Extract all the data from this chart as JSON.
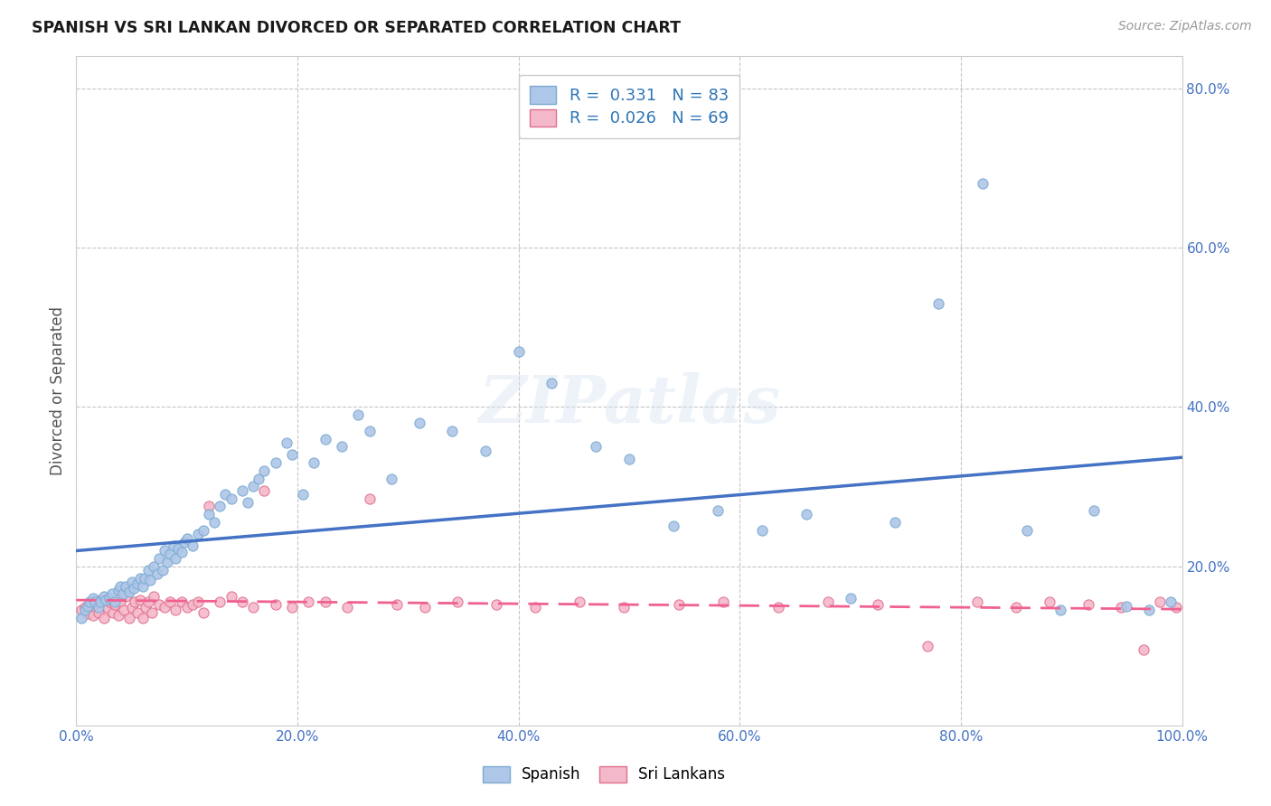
{
  "title": "SPANISH VS SRI LANKAN DIVORCED OR SEPARATED CORRELATION CHART",
  "source_text": "Source: ZipAtlas.com",
  "ylabel": "Divorced or Separated",
  "spanish_R": 0.331,
  "spanish_N": 83,
  "srilanka_R": 0.026,
  "srilanka_N": 69,
  "spanish_color": "#aec6e8",
  "srilanka_color": "#f4b8cb",
  "spanish_line_color": "#4472c4",
  "srilanka_line_color": "#f06090",
  "legend_R_color": "#2e75b6",
  "background_color": "#ffffff",
  "grid_color": "#b8b8b8",
  "watermark": "ZIPatlas",
  "xmin": 0.0,
  "xmax": 1.0,
  "ymin": 0.0,
  "ymax": 0.84,
  "spanish_x": [
    0.005,
    0.008,
    0.01,
    0.012,
    0.015,
    0.017,
    0.02,
    0.022,
    0.025,
    0.027,
    0.03,
    0.032,
    0.035,
    0.038,
    0.04,
    0.042,
    0.045,
    0.048,
    0.05,
    0.052,
    0.055,
    0.058,
    0.06,
    0.062,
    0.065,
    0.067,
    0.07,
    0.073,
    0.075,
    0.078,
    0.08,
    0.082,
    0.085,
    0.088,
    0.09,
    0.092,
    0.095,
    0.098,
    0.1,
    0.105,
    0.11,
    0.115,
    0.12,
    0.125,
    0.13,
    0.135,
    0.14,
    0.15,
    0.155,
    0.16,
    0.165,
    0.17,
    0.18,
    0.19,
    0.195,
    0.205,
    0.215,
    0.225,
    0.24,
    0.255,
    0.265,
    0.285,
    0.31,
    0.34,
    0.37,
    0.4,
    0.43,
    0.47,
    0.5,
    0.54,
    0.58,
    0.62,
    0.66,
    0.7,
    0.74,
    0.78,
    0.82,
    0.86,
    0.89,
    0.92,
    0.95,
    0.97,
    0.99
  ],
  "spanish_y": [
    0.135,
    0.145,
    0.15,
    0.155,
    0.16,
    0.155,
    0.148,
    0.155,
    0.162,
    0.158,
    0.16,
    0.165,
    0.155,
    0.17,
    0.175,
    0.165,
    0.175,
    0.168,
    0.18,
    0.172,
    0.178,
    0.185,
    0.175,
    0.185,
    0.195,
    0.182,
    0.2,
    0.19,
    0.21,
    0.195,
    0.22,
    0.205,
    0.215,
    0.225,
    0.21,
    0.222,
    0.218,
    0.23,
    0.235,
    0.225,
    0.24,
    0.245,
    0.265,
    0.255,
    0.275,
    0.29,
    0.285,
    0.295,
    0.28,
    0.3,
    0.31,
    0.32,
    0.33,
    0.355,
    0.34,
    0.29,
    0.33,
    0.36,
    0.35,
    0.39,
    0.37,
    0.31,
    0.38,
    0.37,
    0.345,
    0.47,
    0.43,
    0.35,
    0.335,
    0.25,
    0.27,
    0.245,
    0.265,
    0.16,
    0.255,
    0.53,
    0.68,
    0.245,
    0.145,
    0.27,
    0.15,
    0.145,
    0.155
  ],
  "srilanka_x": [
    0.005,
    0.008,
    0.01,
    0.013,
    0.015,
    0.018,
    0.02,
    0.022,
    0.025,
    0.028,
    0.03,
    0.033,
    0.035,
    0.038,
    0.04,
    0.043,
    0.045,
    0.048,
    0.05,
    0.053,
    0.055,
    0.058,
    0.06,
    0.063,
    0.065,
    0.068,
    0.07,
    0.075,
    0.08,
    0.085,
    0.09,
    0.095,
    0.1,
    0.105,
    0.11,
    0.115,
    0.12,
    0.13,
    0.14,
    0.15,
    0.16,
    0.17,
    0.18,
    0.195,
    0.21,
    0.225,
    0.245,
    0.265,
    0.29,
    0.315,
    0.345,
    0.38,
    0.415,
    0.455,
    0.495,
    0.545,
    0.585,
    0.635,
    0.68,
    0.725,
    0.77,
    0.815,
    0.85,
    0.88,
    0.915,
    0.945,
    0.965,
    0.98,
    0.995
  ],
  "srilanka_y": [
    0.145,
    0.148,
    0.14,
    0.152,
    0.138,
    0.155,
    0.142,
    0.158,
    0.135,
    0.148,
    0.155,
    0.142,
    0.152,
    0.138,
    0.155,
    0.145,
    0.162,
    0.135,
    0.148,
    0.155,
    0.142,
    0.158,
    0.135,
    0.148,
    0.155,
    0.142,
    0.162,
    0.152,
    0.148,
    0.155,
    0.145,
    0.155,
    0.148,
    0.152,
    0.155,
    0.142,
    0.275,
    0.155,
    0.162,
    0.155,
    0.148,
    0.295,
    0.152,
    0.148,
    0.155,
    0.155,
    0.148,
    0.285,
    0.152,
    0.148,
    0.155,
    0.152,
    0.148,
    0.155,
    0.148,
    0.152,
    0.155,
    0.148,
    0.155,
    0.152,
    0.1,
    0.155,
    0.148,
    0.155,
    0.152,
    0.148,
    0.095,
    0.155,
    0.148
  ]
}
